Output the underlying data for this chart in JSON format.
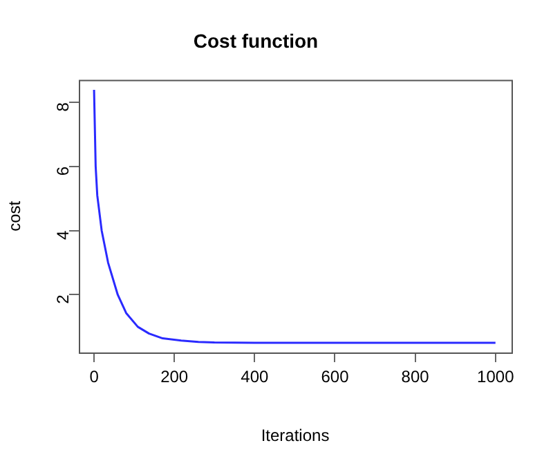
{
  "chart_data": {
    "type": "line",
    "title": "Cost function",
    "xlabel": "Iterations",
    "ylabel": "cost",
    "x": [
      0,
      4,
      8,
      19,
      35,
      59,
      80,
      109,
      137,
      171,
      217,
      260,
      300,
      400,
      600,
      800,
      1000
    ],
    "series": [
      {
        "color": "#2a2aff",
        "values": [
          8.39,
          6.0,
          5.1,
          4.0,
          3.0,
          2.0,
          1.43,
          1.0,
          0.79,
          0.64,
          0.57,
          0.53,
          0.51,
          0.5,
          0.5,
          0.5,
          0.5
        ]
      }
    ],
    "xlim": [
      -38,
      1040
    ],
    "ylim": [
      0.2,
      8.7
    ],
    "xticks": [
      0,
      200,
      400,
      600,
      800,
      1000
    ],
    "yticks": [
      2,
      4,
      6,
      8
    ],
    "grid": false,
    "legend": false,
    "marker": "none",
    "line_style": "solid"
  }
}
